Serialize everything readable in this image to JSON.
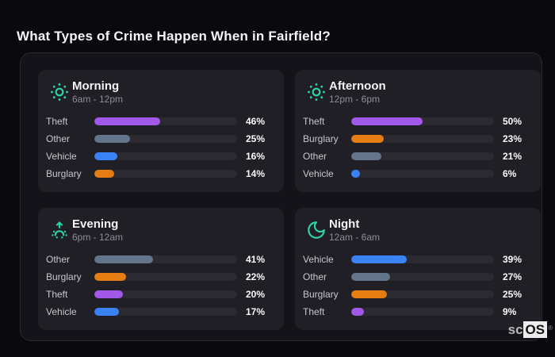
{
  "page": {
    "title": "What Types of Crime Happen When in Fairfield?"
  },
  "watermark": {
    "prefix": "sc",
    "brand": "OS",
    "registered": "®"
  },
  "palette": {
    "accent_icon": "#2ed3a3",
    "theft": "#a259e8",
    "other": "#64748b",
    "vehicle": "#3b82f6",
    "burglary": "#e67d12",
    "bar_track": "#2b2a31",
    "card_background": "#201f25",
    "panel_background": "#141319",
    "page_background": "#0a090d"
  },
  "chart_data": [
    {
      "type": "bar",
      "orientation": "horizontal",
      "title": "Morning",
      "subtitle": "6am - 12pm",
      "icon": "sun-icon",
      "categories": [
        "Theft",
        "Other",
        "Vehicle",
        "Burglary"
      ],
      "values": [
        46,
        25,
        16,
        14
      ],
      "value_labels": [
        "46%",
        "25%",
        "16%",
        "14%"
      ],
      "bar_colors": [
        "#a259e8",
        "#64748b",
        "#3b82f6",
        "#e67d12"
      ],
      "xlim": [
        0,
        100
      ],
      "grid": false,
      "legend": false
    },
    {
      "type": "bar",
      "orientation": "horizontal",
      "title": "Afternoon",
      "subtitle": "12pm - 6pm",
      "icon": "sun-icon",
      "categories": [
        "Theft",
        "Burglary",
        "Other",
        "Vehicle"
      ],
      "values": [
        50,
        23,
        21,
        6
      ],
      "value_labels": [
        "50%",
        "23%",
        "21%",
        "6%"
      ],
      "bar_colors": [
        "#a259e8",
        "#e67d12",
        "#64748b",
        "#3b82f6"
      ],
      "xlim": [
        0,
        100
      ],
      "grid": false,
      "legend": false
    },
    {
      "type": "bar",
      "orientation": "horizontal",
      "title": "Evening",
      "subtitle": "6pm - 12am",
      "icon": "sunrise-icon",
      "categories": [
        "Other",
        "Burglary",
        "Theft",
        "Vehicle"
      ],
      "values": [
        41,
        22,
        20,
        17
      ],
      "value_labels": [
        "41%",
        "22%",
        "20%",
        "17%"
      ],
      "bar_colors": [
        "#64748b",
        "#e67d12",
        "#a259e8",
        "#3b82f6"
      ],
      "xlim": [
        0,
        100
      ],
      "grid": false,
      "legend": false
    },
    {
      "type": "bar",
      "orientation": "horizontal",
      "title": "Night",
      "subtitle": "12am - 6am",
      "icon": "moon-icon",
      "categories": [
        "Vehicle",
        "Other",
        "Burglary",
        "Theft"
      ],
      "values": [
        39,
        27,
        25,
        9
      ],
      "value_labels": [
        "39%",
        "27%",
        "25%",
        "9%"
      ],
      "bar_colors": [
        "#3b82f6",
        "#64748b",
        "#e67d12",
        "#a259e8"
      ],
      "xlim": [
        0,
        100
      ],
      "grid": false,
      "legend": false
    }
  ]
}
